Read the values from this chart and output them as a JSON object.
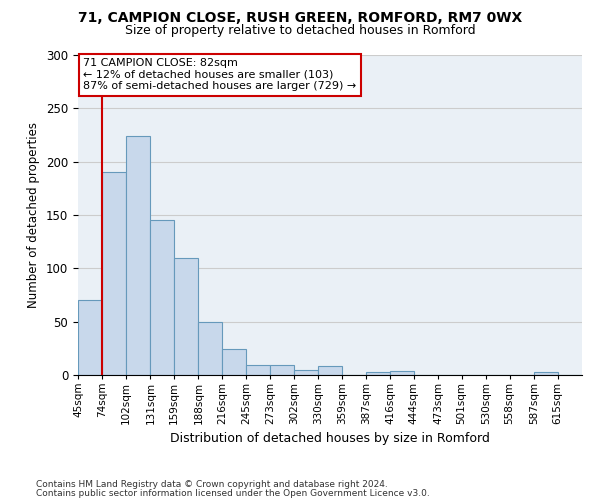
{
  "title_line1": "71, CAMPION CLOSE, RUSH GREEN, ROMFORD, RM7 0WX",
  "title_line2": "Size of property relative to detached houses in Romford",
  "xlabel": "Distribution of detached houses by size in Romford",
  "ylabel": "Number of detached properties",
  "footer_line1": "Contains HM Land Registry data © Crown copyright and database right 2024.",
  "footer_line2": "Contains public sector information licensed under the Open Government Licence v3.0.",
  "annotation_line1": "71 CAMPION CLOSE: 82sqm",
  "annotation_line2": "← 12% of detached houses are smaller (103)",
  "annotation_line3": "87% of semi-detached houses are larger (729) →",
  "bar_color": "#c8d8eb",
  "bar_edge_color": "#6699bb",
  "vline_color": "#cc0000",
  "vline_x_bin": 1,
  "categories": [
    "45sqm",
    "74sqm",
    "102sqm",
    "131sqm",
    "159sqm",
    "188sqm",
    "216sqm",
    "245sqm",
    "273sqm",
    "302sqm",
    "330sqm",
    "359sqm",
    "387sqm",
    "416sqm",
    "444sqm",
    "473sqm",
    "501sqm",
    "530sqm",
    "558sqm",
    "587sqm",
    "615sqm"
  ],
  "bin_edges": [
    45,
    74,
    102,
    131,
    159,
    188,
    216,
    245,
    273,
    302,
    330,
    359,
    387,
    416,
    444,
    473,
    501,
    530,
    558,
    587,
    615,
    644
  ],
  "values": [
    70,
    190,
    224,
    145,
    110,
    50,
    24,
    9,
    9,
    5,
    8,
    0,
    3,
    4,
    0,
    0,
    0,
    0,
    0,
    3,
    0
  ],
  "ylim": [
    0,
    300
  ],
  "yticks": [
    0,
    50,
    100,
    150,
    200,
    250,
    300
  ],
  "grid_color": "#cccccc",
  "background_color": "#eaf0f6"
}
